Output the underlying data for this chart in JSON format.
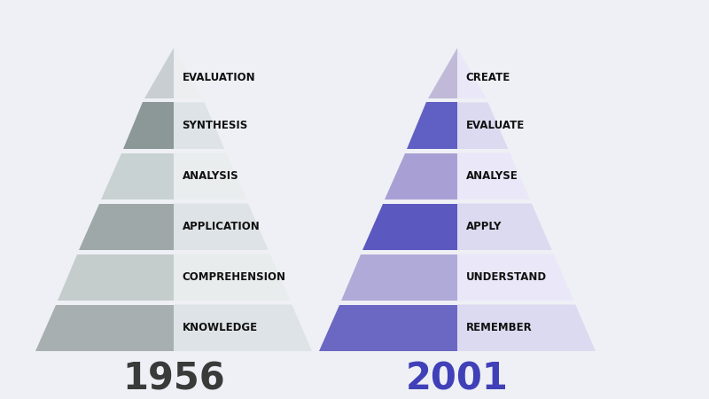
{
  "background_color": "#eef0f5",
  "left_pyramid": {
    "labels": [
      "KNOWLEDGE",
      "COMPREHENSION",
      "APPLICATION",
      "ANALYSIS",
      "SYNTHESIS",
      "EVALUATION"
    ],
    "left_colors": [
      "#a8afb0",
      "#c5cccc",
      "#9ea8a8",
      "#c8d2d2",
      "#8c9898",
      "#c8ced2"
    ],
    "right_colors": [
      "#dde3e6",
      "#e8ecec",
      "#dde3e6",
      "#eaedee",
      "#dde3e6",
      "#eceef0"
    ],
    "year": "1956",
    "year_color": "#3a3a3a"
  },
  "right_pyramid": {
    "labels": [
      "REMEMBER",
      "UNDERSTAND",
      "APPLY",
      "ANALYSE",
      "EVALUATE",
      "CREATE"
    ],
    "left_colors": [
      "#6b68c4",
      "#b0aad8",
      "#5b58c0",
      "#a8a0d4",
      "#6060c4",
      "#c0bad8"
    ],
    "right_colors": [
      "#dcdaf0",
      "#eae8f8",
      "#dcdaf0",
      "#eae8f8",
      "#dcdaf0",
      "#eae8f8"
    ],
    "year": "2001",
    "year_color": "#4040b8"
  },
  "label_fontsize": 8.5,
  "year_fontsize": 30
}
